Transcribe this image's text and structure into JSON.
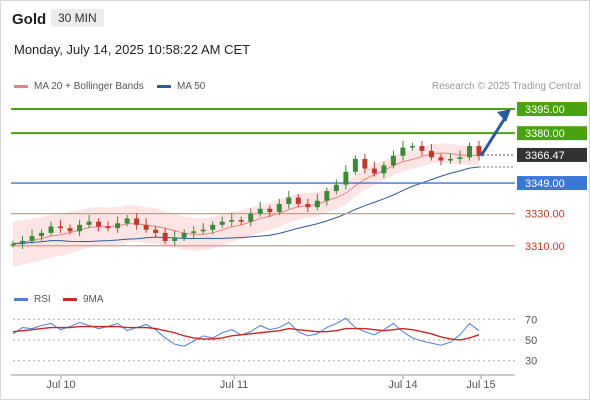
{
  "header": {
    "instrument": "Gold",
    "timeframe": "30 MIN",
    "datetime": "Monday, July 14, 2025 10:58:22 AM CET"
  },
  "credit": "Research © 2025 Trading Central",
  "colors": {
    "up_candle": "#3a8a3a",
    "down_candle": "#c0392b",
    "ma20": "#f08080",
    "bollinger_fill": "#fde2e2",
    "ma50": "#2c5aa0",
    "resistance": "#4aa30e",
    "support": "#e69090",
    "pivot": "#3a78d8",
    "current": "#333333",
    "rsi": "#4f7fd6",
    "rsi_ma": "#c62828",
    "arrow": "#2d5c9e"
  },
  "chart_data": [
    {
      "type": "candlestick",
      "legend": [
        "MA 20 + Bollinger Bands",
        "MA 50"
      ],
      "x_ticks": [
        "Jul 10",
        "Jul 11",
        "Jul 14",
        "Jul 15"
      ],
      "levels": [
        {
          "value": 3395.0,
          "label": "3395.00",
          "kind": "resistance"
        },
        {
          "value": 3380.0,
          "label": "3380.00",
          "kind": "resistance"
        },
        {
          "value": 3366.47,
          "label": "3366.47",
          "kind": "current"
        },
        {
          "value": 3349.0,
          "label": "3349.00",
          "kind": "pivot"
        },
        {
          "value": 3330.0,
          "label": "3330.00",
          "kind": "support"
        },
        {
          "value": 3310.0,
          "label": "3310.00",
          "kind": "support"
        }
      ],
      "close_path": [
        3311,
        3313,
        3316,
        3318,
        3322,
        3321,
        3319,
        3323,
        3325,
        3322,
        3321,
        3324,
        3327,
        3323,
        3320,
        3318,
        3313,
        3315,
        3318,
        3319,
        3320,
        3323,
        3325,
        3326,
        3325,
        3330,
        3333,
        3331,
        3336,
        3340,
        3336,
        3334,
        3338,
        3344,
        3348,
        3356,
        3364,
        3358,
        3355,
        3360,
        3366,
        3371,
        3372,
        3369,
        3365,
        3363,
        3364,
        3365,
        3372,
        3366
      ],
      "ylim": [
        3285,
        3400
      ],
      "arrow": {
        "from": 3366.47,
        "to": 3395.0
      }
    },
    {
      "type": "line",
      "title": "",
      "legend": [
        "RSI",
        "9MA"
      ],
      "y_ticks": [
        70,
        50,
        30
      ],
      "ylim": [
        22,
        78
      ],
      "series": [
        {
          "name": "RSI",
          "values": [
            56,
            62,
            61,
            64,
            66,
            60,
            63,
            67,
            64,
            61,
            63,
            66,
            59,
            62,
            65,
            60,
            52,
            46,
            44,
            49,
            54,
            52,
            57,
            60,
            55,
            58,
            64,
            60,
            62,
            67,
            58,
            54,
            56,
            62,
            66,
            71,
            62,
            58,
            55,
            60,
            66,
            58,
            52,
            49,
            47,
            45,
            48,
            55,
            66,
            59
          ]
        },
        {
          "name": "9MA",
          "values": [
            58,
            59,
            60,
            61,
            62,
            62,
            62,
            63,
            63,
            63,
            63,
            63,
            62,
            62,
            62,
            61,
            59,
            57,
            54,
            52,
            51,
            51,
            52,
            54,
            55,
            56,
            57,
            58,
            59,
            61,
            60,
            59,
            58,
            58,
            59,
            61,
            61,
            61,
            60,
            59,
            60,
            61,
            60,
            58,
            56,
            53,
            51,
            50,
            52,
            55
          ]
        }
      ]
    }
  ]
}
